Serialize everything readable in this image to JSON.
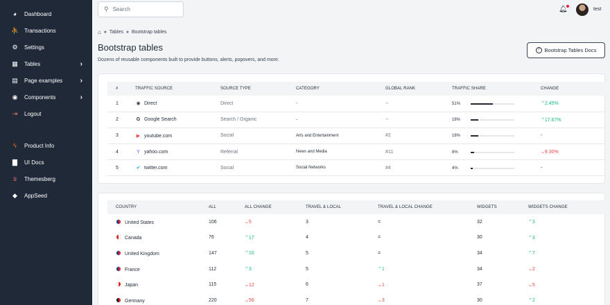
{
  "sidebar": {
    "items": [
      {
        "icon": "pie-chart-icon",
        "glyph": "◕",
        "label": "Dashboard"
      },
      {
        "icon": "user-hand-icon",
        "glyph": "⛹",
        "label": "Transactions"
      },
      {
        "icon": "gear-icon",
        "glyph": "⚙",
        "label": "Settings"
      },
      {
        "icon": "table-icon",
        "glyph": "▦",
        "label": "Tables",
        "chevron": "›"
      },
      {
        "icon": "file-icon",
        "glyph": "▤",
        "label": "Page examples",
        "chevron": "›"
      },
      {
        "icon": "components-icon",
        "glyph": "◉",
        "label": "Components",
        "chevron": "›"
      },
      {
        "icon": "logout-icon",
        "glyph": "⇥",
        "label": "Logout",
        "icon_color": "#f87171"
      }
    ],
    "secondary": [
      {
        "icon": "bolt-icon",
        "glyph": "ϟ",
        "label": "Product Info",
        "icon_color": "#f97316"
      },
      {
        "icon": "book-icon",
        "glyph": "▇",
        "label": "UI Docs"
      },
      {
        "icon": "themesberg-icon",
        "glyph": "⩰",
        "label": "Themesberg",
        "icon_color": "#f87171"
      },
      {
        "icon": "appseed-icon",
        "glyph": "◆",
        "label": "AppSeed"
      }
    ]
  },
  "topbar": {
    "search_placeholder": "Search",
    "username": "test"
  },
  "breadcrumb": {
    "items": [
      "Tables",
      "Bootstrap tables"
    ],
    "separator": "»"
  },
  "page": {
    "title": "Bootstrap tables",
    "subtitle": "Dozens of reusable components built to provide buttons, alerts, popovers, and more.",
    "docs_button": "Bootstrap Tables Docs"
  },
  "traffic_table": {
    "headers": [
      "#",
      "TRAFFIC SOURCE",
      "SOURCE TYPE",
      "CATEGORY",
      "GLOBAL RANK",
      "TRAFFIC SHARE",
      "CHANGE"
    ],
    "rows": [
      {
        "num": "1",
        "icon": "globe-icon",
        "glyph": "◉",
        "icon_color": "#374151",
        "source": "Direct",
        "type": "Direct",
        "category": "-",
        "rank": "--",
        "share": "51%",
        "share_value": 51,
        "change": "2.45%",
        "change_dir": "up"
      },
      {
        "num": "2",
        "icon": "google-icon",
        "glyph": "G",
        "icon_color": "#1f2937",
        "source": "Google Search",
        "type": "Search / Organic",
        "category": "-",
        "rank": "--",
        "share": "18%",
        "share_value": 18,
        "change": "17.67%",
        "change_dir": "up"
      },
      {
        "num": "3",
        "icon": "youtube-icon",
        "glyph": "▶",
        "icon_color": "#ef4444",
        "source": "youtube.com",
        "type": "Social",
        "category": "Arts and Entertainment",
        "rank": "#2",
        "share": "18%",
        "share_value": 18,
        "change": "-",
        "change_dir": "none"
      },
      {
        "num": "4",
        "icon": "yahoo-icon",
        "glyph": "Y",
        "icon_color": "#7c3aed",
        "source": "yahoo.com",
        "type": "Referral",
        "category": "News and Media",
        "rank": "#11",
        "share": "8%",
        "share_value": 8,
        "change": "9.30%",
        "change_dir": "down"
      },
      {
        "num": "5",
        "icon": "twitter-icon",
        "glyph": "✔",
        "icon_color": "#1d9bf0",
        "source": "twitter.com",
        "type": "Social",
        "category": "Social Networks",
        "rank": "#4",
        "share": "4%",
        "share_value": 4,
        "change": "-",
        "change_dir": "none"
      }
    ]
  },
  "country_table": {
    "headers": [
      "COUNTRY",
      "ALL",
      "ALL CHANGE",
      "TRAVEL & LOCAL",
      "TRAVEL & LOCAL CHANGE",
      "WIDGETS",
      "WIDGETS CHANGE"
    ],
    "rows": [
      {
        "flag": "flag-us-icon",
        "flag_colors": [
          "#1e3a8a",
          "#dc2626"
        ],
        "country": "United States",
        "all": "106",
        "all_change": "5",
        "all_dir": "down",
        "travel": "3",
        "travel_change": "=",
        "travel_dir": "none",
        "widgets": "32",
        "widgets_change": "3",
        "widgets_dir": "up"
      },
      {
        "flag": "flag-ca-icon",
        "flag_colors": [
          "#dc2626",
          "#ffffff"
        ],
        "country": "Canada",
        "all": "76",
        "all_change": "17",
        "all_dir": "up",
        "travel": "4",
        "travel_change": "=",
        "travel_dir": "none",
        "widgets": "30",
        "widgets_change": "3",
        "widgets_dir": "up"
      },
      {
        "flag": "flag-gb-icon",
        "flag_colors": [
          "#1e3a8a",
          "#dc2626"
        ],
        "country": "United Kingdom",
        "all": "147",
        "all_change": "10",
        "all_dir": "up",
        "travel": "5",
        "travel_change": "=",
        "travel_dir": "none",
        "widgets": "34",
        "widgets_change": "7",
        "widgets_dir": "up"
      },
      {
        "flag": "flag-fr-icon",
        "flag_colors": [
          "#1e3a8a",
          "#dc2626"
        ],
        "country": "France",
        "all": "112",
        "all_change": "3",
        "all_dir": "up",
        "travel": "5",
        "travel_change": "1",
        "travel_dir": "up",
        "widgets": "34",
        "widgets_change": "2",
        "widgets_dir": "down"
      },
      {
        "flag": "flag-jp-icon",
        "flag_colors": [
          "#ffffff",
          "#dc2626"
        ],
        "country": "Japan",
        "all": "115",
        "all_change": "12",
        "all_dir": "down",
        "travel": "6",
        "travel_change": "1",
        "travel_dir": "down",
        "widgets": "37",
        "widgets_change": "5",
        "widgets_dir": "down"
      },
      {
        "flag": "flag-de-icon",
        "flag_colors": [
          "#111827",
          "#dc2626"
        ],
        "country": "Germany",
        "all": "220",
        "all_change": "56",
        "all_dir": "down",
        "travel": "7",
        "travel_change": "3",
        "travel_dir": "down",
        "widgets": "30",
        "widgets_change": "2",
        "widgets_dir": "up"
      }
    ]
  }
}
